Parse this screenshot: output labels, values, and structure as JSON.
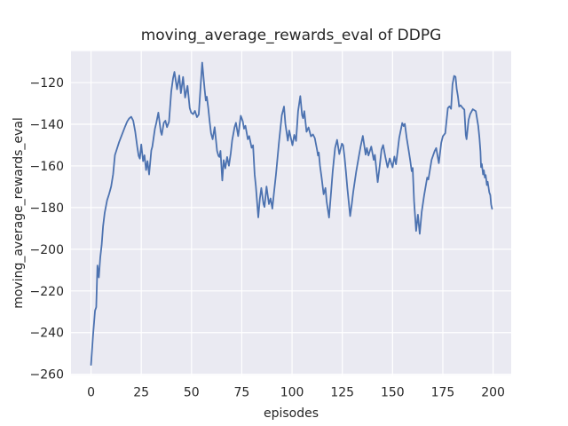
{
  "chart_data": {
    "type": "line",
    "title": "moving_average_rewards_eval of DDPG",
    "xlabel": "episodes",
    "ylabel": "moving_average_rewards_eval",
    "legend": "none",
    "grid": "on",
    "xlim": [
      -9.95,
      209.0
    ],
    "ylim": [
      -260.3,
      -104.9
    ],
    "x_ticks": [
      0,
      25,
      50,
      75,
      100,
      125,
      150,
      175,
      200
    ],
    "x_tick_labels": [
      "0",
      "25",
      "50",
      "75",
      "100",
      "125",
      "150",
      "175",
      "200"
    ],
    "y_ticks": [
      -260,
      -240,
      -220,
      -200,
      -180,
      -160,
      -140,
      -120
    ],
    "y_tick_labels": [
      "−260",
      "−240",
      "−220",
      "−200",
      "−180",
      "−160",
      "−140",
      "−120"
    ],
    "colors": {
      "line": "#4C72B0",
      "axes_background": "#EAEAF2",
      "grid": "#FFFFFF",
      "figure_background": "#FFFFFF",
      "text": "#262626"
    },
    "series_name": "moving_average_rewards_eval",
    "points": [
      [
        0,
        -255.5
      ],
      [
        1,
        -241.5
      ],
      [
        2,
        -229.5
      ],
      [
        2.6,
        -227.8
      ],
      [
        3.2,
        -207.8
      ],
      [
        3.9,
        -213.5
      ],
      [
        4.6,
        -204.0
      ],
      [
        5.3,
        -198.0
      ],
      [
        6.0,
        -189.0
      ],
      [
        6.8,
        -182.6
      ],
      [
        8.0,
        -176.5
      ],
      [
        9.0,
        -173.5
      ],
      [
        10.0,
        -170.0
      ],
      [
        11.0,
        -164.0
      ],
      [
        11.9,
        -154.8
      ],
      [
        13.0,
        -151.5
      ],
      [
        14.0,
        -148.5
      ],
      [
        15.0,
        -146.0
      ],
      [
        16.0,
        -143.5
      ],
      [
        17.0,
        -141.0
      ],
      [
        18.0,
        -138.7
      ],
      [
        19.0,
        -137.2
      ],
      [
        20.0,
        -136.4
      ],
      [
        21.0,
        -138.3
      ],
      [
        22.0,
        -143.6
      ],
      [
        23.0,
        -150.8
      ],
      [
        23.7,
        -155.2
      ],
      [
        24.3,
        -156.5
      ],
      [
        25.0,
        -149.7
      ],
      [
        25.9,
        -157.7
      ],
      [
        26.6,
        -154.9
      ],
      [
        27.4,
        -162.0
      ],
      [
        28.1,
        -157.7
      ],
      [
        28.9,
        -164.1
      ],
      [
        30.0,
        -152.5
      ],
      [
        30.5,
        -150.8
      ],
      [
        31.8,
        -142.1
      ],
      [
        32.5,
        -139.3
      ],
      [
        33.5,
        -134.4
      ],
      [
        34.7,
        -143.5
      ],
      [
        35.2,
        -145.1
      ],
      [
        36.2,
        -139.3
      ],
      [
        37.0,
        -138.3
      ],
      [
        37.8,
        -141.4
      ],
      [
        38.8,
        -138.8
      ],
      [
        39.9,
        -124.4
      ],
      [
        40.8,
        -118.0
      ],
      [
        41.5,
        -114.9
      ],
      [
        42.8,
        -123.2
      ],
      [
        43.9,
        -116.6
      ],
      [
        44.7,
        -125.1
      ],
      [
        45.8,
        -117.3
      ],
      [
        46.8,
        -127.2
      ],
      [
        48.0,
        -121.6
      ],
      [
        49.1,
        -132.2
      ],
      [
        49.8,
        -134.4
      ],
      [
        50.8,
        -135.2
      ],
      [
        51.7,
        -133.6
      ],
      [
        52.7,
        -136.6
      ],
      [
        53.6,
        -135.3
      ],
      [
        54.5,
        -122.0
      ],
      [
        55.3,
        -110.4
      ],
      [
        56.5,
        -123.1
      ],
      [
        57.1,
        -128.6
      ],
      [
        57.6,
        -126.8
      ],
      [
        58.3,
        -132.0
      ],
      [
        59.0,
        -138.6
      ],
      [
        59.7,
        -144.3
      ],
      [
        60.5,
        -147.2
      ],
      [
        61.5,
        -141.4
      ],
      [
        62.7,
        -152.8
      ],
      [
        63.4,
        -155.2
      ],
      [
        63.9,
        -155.7
      ],
      [
        64.4,
        -152.8
      ],
      [
        65.3,
        -167.0
      ],
      [
        66.0,
        -157.2
      ],
      [
        66.8,
        -161.2
      ],
      [
        67.7,
        -155.7
      ],
      [
        68.6,
        -159.9
      ],
      [
        69.5,
        -154.0
      ],
      [
        70.2,
        -147.8
      ],
      [
        71.4,
        -141.4
      ],
      [
        72.1,
        -139.3
      ],
      [
        73.2,
        -145.7
      ],
      [
        74.5,
        -135.9
      ],
      [
        75.5,
        -138.6
      ],
      [
        76.1,
        -142.1
      ],
      [
        76.8,
        -140.7
      ],
      [
        78.0,
        -147.2
      ],
      [
        78.7,
        -145.7
      ],
      [
        79.9,
        -151.3
      ],
      [
        80.6,
        -150.1
      ],
      [
        81.4,
        -164.1
      ],
      [
        82.0,
        -169.8
      ],
      [
        83.2,
        -184.7
      ],
      [
        84.0,
        -175.6
      ],
      [
        84.7,
        -170.6
      ],
      [
        85.8,
        -178.3
      ],
      [
        86.3,
        -179.7
      ],
      [
        87.3,
        -169.9
      ],
      [
        88.5,
        -178.3
      ],
      [
        89.3,
        -175.6
      ],
      [
        90.2,
        -180.5
      ],
      [
        91.0,
        -173.0
      ],
      [
        92.0,
        -164.1
      ],
      [
        93.5,
        -148.6
      ],
      [
        94.9,
        -135.7
      ],
      [
        96.0,
        -131.5
      ],
      [
        96.7,
        -140.0
      ],
      [
        97.9,
        -147.9
      ],
      [
        98.6,
        -143.0
      ],
      [
        99.4,
        -146.5
      ],
      [
        100.2,
        -150.1
      ],
      [
        101.1,
        -145.1
      ],
      [
        102.0,
        -148.0
      ],
      [
        103.0,
        -133.7
      ],
      [
        104.1,
        -126.5
      ],
      [
        105.0,
        -135.7
      ],
      [
        105.5,
        -137.1
      ],
      [
        106.1,
        -133.7
      ],
      [
        107.2,
        -143.6
      ],
      [
        108.2,
        -141.5
      ],
      [
        109.4,
        -145.8
      ],
      [
        110.4,
        -144.9
      ],
      [
        111.3,
        -146.6
      ],
      [
        112.5,
        -152.6
      ],
      [
        112.9,
        -155.0
      ],
      [
        113.3,
        -153.6
      ],
      [
        113.9,
        -159.9
      ],
      [
        114.7,
        -165.6
      ],
      [
        115.7,
        -173.6
      ],
      [
        116.6,
        -170.6
      ],
      [
        117.2,
        -177.0
      ],
      [
        118.4,
        -184.8
      ],
      [
        119.4,
        -172.7
      ],
      [
        120.2,
        -162.8
      ],
      [
        121.4,
        -151.4
      ],
      [
        122.4,
        -147.5
      ],
      [
        123.5,
        -154.3
      ],
      [
        124.8,
        -149.3
      ],
      [
        125.4,
        -150.1
      ],
      [
        126.1,
        -155.7
      ],
      [
        126.8,
        -162.8
      ],
      [
        127.5,
        -170.6
      ],
      [
        128.9,
        -184.1
      ],
      [
        129.7,
        -178.4
      ],
      [
        130.4,
        -172.7
      ],
      [
        131.9,
        -162.8
      ],
      [
        133.3,
        -155.0
      ],
      [
        134.1,
        -150.7
      ],
      [
        135.2,
        -145.6
      ],
      [
        136.6,
        -154.6
      ],
      [
        137.2,
        -151.4
      ],
      [
        138.0,
        -155.0
      ],
      [
        139.4,
        -150.7
      ],
      [
        140.6,
        -157.1
      ],
      [
        141.2,
        -154.7
      ],
      [
        142.6,
        -167.8
      ],
      [
        143.5,
        -160.7
      ],
      [
        144.5,
        -152.2
      ],
      [
        145.3,
        -150.0
      ],
      [
        146.4,
        -155.7
      ],
      [
        147.5,
        -160.7
      ],
      [
        148.6,
        -156.4
      ],
      [
        150.0,
        -160.7
      ],
      [
        150.9,
        -155.5
      ],
      [
        151.7,
        -159.2
      ],
      [
        152.6,
        -152.2
      ],
      [
        153.3,
        -146.5
      ],
      [
        154.8,
        -139.4
      ],
      [
        155.5,
        -140.9
      ],
      [
        156.1,
        -139.8
      ],
      [
        157.0,
        -146.5
      ],
      [
        158.0,
        -152.5
      ],
      [
        158.8,
        -157.5
      ],
      [
        159.5,
        -162.5
      ],
      [
        160.0,
        -161.0
      ],
      [
        160.7,
        -177.0
      ],
      [
        161.7,
        -191.2
      ],
      [
        162.6,
        -183.4
      ],
      [
        163.5,
        -192.6
      ],
      [
        164.5,
        -182.0
      ],
      [
        165.7,
        -174.1
      ],
      [
        167.2,
        -165.6
      ],
      [
        167.8,
        -166.5
      ],
      [
        169.4,
        -157.1
      ],
      [
        170.9,
        -152.9
      ],
      [
        171.7,
        -151.4
      ],
      [
        173.0,
        -158.7
      ],
      [
        174.2,
        -148.9
      ],
      [
        175.0,
        -145.8
      ],
      [
        176.2,
        -144.3
      ],
      [
        177.5,
        -132.2
      ],
      [
        178.3,
        -131.4
      ],
      [
        179.1,
        -132.6
      ],
      [
        179.8,
        -120.9
      ],
      [
        180.6,
        -116.8
      ],
      [
        181.3,
        -117.2
      ],
      [
        181.9,
        -123.1
      ],
      [
        182.5,
        -126.6
      ],
      [
        183.1,
        -131.5
      ],
      [
        183.8,
        -130.9
      ],
      [
        184.9,
        -132.2
      ],
      [
        185.7,
        -133.0
      ],
      [
        186.4,
        -145.1
      ],
      [
        186.8,
        -147.2
      ],
      [
        187.8,
        -137.9
      ],
      [
        188.6,
        -135.1
      ],
      [
        189.9,
        -132.8
      ],
      [
        191.4,
        -133.7
      ],
      [
        192.6,
        -140.8
      ],
      [
        193.2,
        -146.5
      ],
      [
        193.7,
        -153.0
      ],
      [
        194.0,
        -160.6
      ],
      [
        194.4,
        -159.1
      ],
      [
        195.0,
        -164.1
      ],
      [
        195.4,
        -162.1
      ],
      [
        195.9,
        -165.6
      ],
      [
        196.3,
        -164.4
      ],
      [
        196.9,
        -169.2
      ],
      [
        197.3,
        -167.6
      ],
      [
        198.1,
        -172.7
      ],
      [
        198.6,
        -174.0
      ],
      [
        199.0,
        -178.4
      ],
      [
        199.5,
        -180.6
      ]
    ]
  }
}
